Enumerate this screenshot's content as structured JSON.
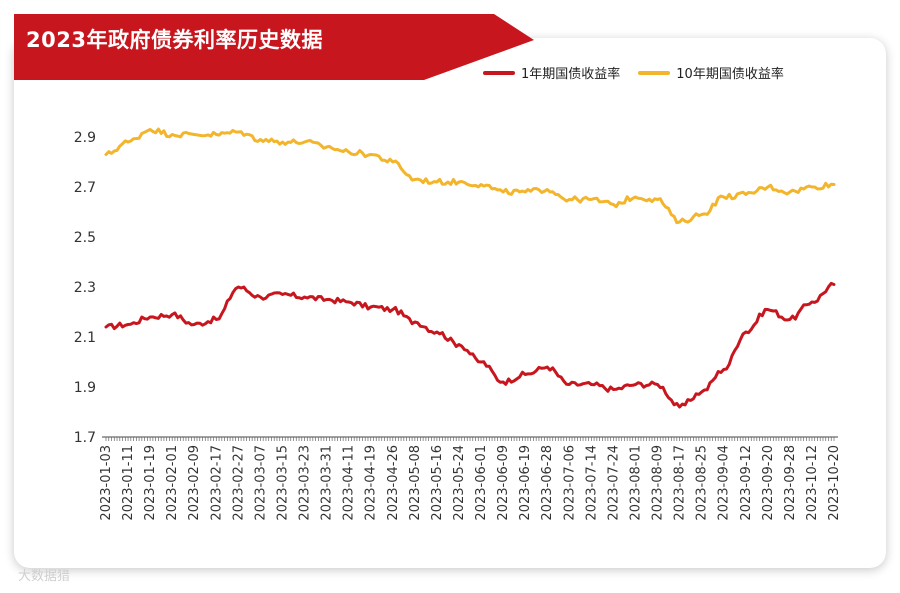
{
  "chart_data": {
    "type": "line",
    "title": "2023年政府债券利率历史数据",
    "xlabel": "",
    "ylabel": "",
    "ylim": [
      1.7,
      3.0
    ],
    "yticks": [
      1.7,
      1.9,
      2.1,
      2.3,
      2.5,
      2.7,
      2.9
    ],
    "x": [
      "2023-01-03",
      "2023-01-11",
      "2023-01-19",
      "2023-02-01",
      "2023-02-09",
      "2023-02-17",
      "2023-02-27",
      "2023-03-07",
      "2023-03-15",
      "2023-03-23",
      "2023-03-31",
      "2023-04-11",
      "2023-04-19",
      "2023-04-26",
      "2023-05-08",
      "2023-05-16",
      "2023-05-24",
      "2023-06-01",
      "2023-06-09",
      "2023-06-19",
      "2023-06-28",
      "2023-07-06",
      "2023-07-14",
      "2023-07-24",
      "2023-08-01",
      "2023-08-09",
      "2023-08-17",
      "2023-08-25",
      "2023-09-04",
      "2023-09-12",
      "2023-09-20",
      "2023-09-28",
      "2023-10-12",
      "2023-10-20"
    ],
    "series": [
      {
        "name": "1年期国债收益率",
        "color": "#c8161e",
        "values": [
          2.14,
          2.15,
          2.18,
          2.19,
          2.15,
          2.17,
          2.3,
          2.26,
          2.27,
          2.26,
          2.25,
          2.24,
          2.22,
          2.21,
          2.16,
          2.12,
          2.07,
          2.0,
          1.92,
          1.95,
          1.98,
          1.91,
          1.91,
          1.89,
          1.91,
          1.91,
          1.82,
          1.88,
          1.97,
          2.12,
          2.21,
          2.17,
          2.24,
          2.31
        ]
      },
      {
        "name": "10年期国债收益率",
        "color": "#f3b52b",
        "values": [
          2.83,
          2.88,
          2.93,
          2.91,
          2.91,
          2.91,
          2.92,
          2.89,
          2.88,
          2.88,
          2.86,
          2.84,
          2.83,
          2.8,
          2.73,
          2.72,
          2.72,
          2.71,
          2.68,
          2.68,
          2.69,
          2.65,
          2.65,
          2.63,
          2.66,
          2.65,
          2.56,
          2.59,
          2.66,
          2.67,
          2.7,
          2.68,
          2.7,
          2.71
        ]
      }
    ],
    "grid": false,
    "legend": "top-right"
  },
  "watermark": "大数据猎"
}
